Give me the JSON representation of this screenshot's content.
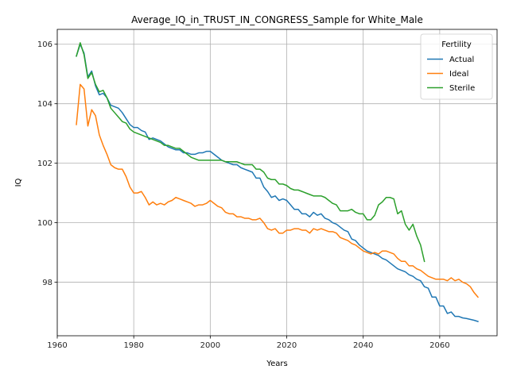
{
  "chart_data": {
    "type": "line",
    "title": "Average_IQ_in_TRUST_IN_CONGRESS_Sample for White_Male",
    "xlabel": "Years",
    "ylabel": "IQ",
    "xlim": [
      1960,
      2075
    ],
    "ylim": [
      96.2,
      106.5
    ],
    "x_ticks": [
      1960,
      1980,
      2000,
      2020,
      2040,
      2060
    ],
    "y_ticks": [
      98,
      100,
      102,
      104,
      106
    ],
    "grid": true,
    "legend": {
      "title": "Fertility",
      "location": "top-right"
    },
    "series": [
      {
        "name": "Actual",
        "color": "#1f77b4",
        "points": [
          [
            1965,
            105.6
          ],
          [
            1966,
            106.0
          ],
          [
            1967,
            105.7
          ],
          [
            1968,
            104.9
          ],
          [
            1969,
            105.1
          ],
          [
            1970,
            104.6
          ],
          [
            1971,
            104.3
          ],
          [
            1972,
            104.35
          ],
          [
            1973,
            104.2
          ],
          [
            1974,
            103.95
          ],
          [
            1975,
            103.9
          ],
          [
            1976,
            103.85
          ],
          [
            1977,
            103.7
          ],
          [
            1978,
            103.5
          ],
          [
            1979,
            103.3
          ],
          [
            1980,
            103.2
          ],
          [
            1981,
            103.2
          ],
          [
            1982,
            103.1
          ],
          [
            1983,
            103.05
          ],
          [
            1984,
            102.8
          ],
          [
            1985,
            102.85
          ],
          [
            1986,
            102.8
          ],
          [
            1987,
            102.75
          ],
          [
            1988,
            102.65
          ],
          [
            1989,
            102.55
          ],
          [
            1990,
            102.5
          ],
          [
            1991,
            102.45
          ],
          [
            1992,
            102.45
          ],
          [
            1993,
            102.35
          ],
          [
            1994,
            102.35
          ],
          [
            1995,
            102.3
          ],
          [
            1996,
            102.3
          ],
          [
            1997,
            102.35
          ],
          [
            1998,
            102.35
          ],
          [
            1999,
            102.4
          ],
          [
            2000,
            102.4
          ],
          [
            2001,
            102.3
          ],
          [
            2002,
            102.2
          ],
          [
            2003,
            102.1
          ],
          [
            2004,
            102.05
          ],
          [
            2005,
            102.0
          ],
          [
            2006,
            101.95
          ],
          [
            2007,
            101.95
          ],
          [
            2008,
            101.85
          ],
          [
            2009,
            101.8
          ],
          [
            2010,
            101.75
          ],
          [
            2011,
            101.7
          ],
          [
            2012,
            101.5
          ],
          [
            2013,
            101.5
          ],
          [
            2014,
            101.2
          ],
          [
            2015,
            101.05
          ],
          [
            2016,
            100.85
          ],
          [
            2017,
            100.9
          ],
          [
            2018,
            100.75
          ],
          [
            2019,
            100.8
          ],
          [
            2020,
            100.75
          ],
          [
            2021,
            100.6
          ],
          [
            2022,
            100.45
          ],
          [
            2023,
            100.45
          ],
          [
            2024,
            100.3
          ],
          [
            2025,
            100.3
          ],
          [
            2026,
            100.2
          ],
          [
            2027,
            100.35
          ],
          [
            2028,
            100.25
          ],
          [
            2029,
            100.3
          ],
          [
            2030,
            100.15
          ],
          [
            2031,
            100.1
          ],
          [
            2032,
            100.0
          ],
          [
            2033,
            99.95
          ],
          [
            2034,
            99.85
          ],
          [
            2035,
            99.75
          ],
          [
            2036,
            99.7
          ],
          [
            2037,
            99.45
          ],
          [
            2038,
            99.4
          ],
          [
            2039,
            99.25
          ],
          [
            2040,
            99.15
          ],
          [
            2041,
            99.05
          ],
          [
            2042,
            99.0
          ],
          [
            2043,
            98.95
          ],
          [
            2044,
            98.9
          ],
          [
            2045,
            98.8
          ],
          [
            2046,
            98.75
          ],
          [
            2047,
            98.65
          ],
          [
            2048,
            98.55
          ],
          [
            2049,
            98.45
          ],
          [
            2050,
            98.4
          ],
          [
            2051,
            98.35
          ],
          [
            2052,
            98.25
          ],
          [
            2053,
            98.2
          ],
          [
            2054,
            98.1
          ],
          [
            2055,
            98.05
          ],
          [
            2056,
            97.85
          ],
          [
            2057,
            97.8
          ],
          [
            2058,
            97.5
          ],
          [
            2059,
            97.5
          ],
          [
            2060,
            97.2
          ],
          [
            2061,
            97.2
          ],
          [
            2062,
            96.95
          ],
          [
            2063,
            97.0
          ],
          [
            2064,
            96.85
          ],
          [
            2065,
            96.85
          ],
          [
            2066,
            96.8
          ],
          [
            2067,
            96.78
          ],
          [
            2068,
            96.75
          ],
          [
            2069,
            96.72
          ],
          [
            2070,
            96.68
          ]
        ]
      },
      {
        "name": "Ideal",
        "color": "#ff7f0e",
        "points": [
          [
            1965,
            103.3
          ],
          [
            1966,
            104.65
          ],
          [
            1967,
            104.5
          ],
          [
            1968,
            103.25
          ],
          [
            1969,
            103.8
          ],
          [
            1970,
            103.6
          ],
          [
            1971,
            102.95
          ],
          [
            1972,
            102.6
          ],
          [
            1973,
            102.3
          ],
          [
            1974,
            101.95
          ],
          [
            1975,
            101.85
          ],
          [
            1976,
            101.8
          ],
          [
            1977,
            101.8
          ],
          [
            1978,
            101.55
          ],
          [
            1979,
            101.2
          ],
          [
            1980,
            101.0
          ],
          [
            1981,
            101.0
          ],
          [
            1982,
            101.05
          ],
          [
            1983,
            100.85
          ],
          [
            1984,
            100.6
          ],
          [
            1985,
            100.7
          ],
          [
            1986,
            100.6
          ],
          [
            1987,
            100.65
          ],
          [
            1988,
            100.6
          ],
          [
            1989,
            100.7
          ],
          [
            1990,
            100.75
          ],
          [
            1991,
            100.85
          ],
          [
            1992,
            100.8
          ],
          [
            1993,
            100.75
          ],
          [
            1994,
            100.7
          ],
          [
            1995,
            100.65
          ],
          [
            1996,
            100.55
          ],
          [
            1997,
            100.6
          ],
          [
            1998,
            100.6
          ],
          [
            1999,
            100.65
          ],
          [
            2000,
            100.75
          ],
          [
            2001,
            100.65
          ],
          [
            2002,
            100.55
          ],
          [
            2003,
            100.5
          ],
          [
            2004,
            100.35
          ],
          [
            2005,
            100.3
          ],
          [
            2006,
            100.3
          ],
          [
            2007,
            100.2
          ],
          [
            2008,
            100.2
          ],
          [
            2009,
            100.15
          ],
          [
            2010,
            100.15
          ],
          [
            2011,
            100.1
          ],
          [
            2012,
            100.1
          ],
          [
            2013,
            100.15
          ],
          [
            2014,
            100.0
          ],
          [
            2015,
            99.8
          ],
          [
            2016,
            99.75
          ],
          [
            2017,
            99.8
          ],
          [
            2018,
            99.65
          ],
          [
            2019,
            99.65
          ],
          [
            2020,
            99.75
          ],
          [
            2021,
            99.75
          ],
          [
            2022,
            99.8
          ],
          [
            2023,
            99.8
          ],
          [
            2024,
            99.75
          ],
          [
            2025,
            99.75
          ],
          [
            2026,
            99.65
          ],
          [
            2027,
            99.8
          ],
          [
            2028,
            99.75
          ],
          [
            2029,
            99.8
          ],
          [
            2030,
            99.75
          ],
          [
            2031,
            99.7
          ],
          [
            2032,
            99.7
          ],
          [
            2033,
            99.65
          ],
          [
            2034,
            99.5
          ],
          [
            2035,
            99.45
          ],
          [
            2036,
            99.4
          ],
          [
            2037,
            99.3
          ],
          [
            2038,
            99.25
          ],
          [
            2039,
            99.15
          ],
          [
            2040,
            99.05
          ],
          [
            2041,
            99.0
          ],
          [
            2042,
            98.95
          ],
          [
            2043,
            99.0
          ],
          [
            2044,
            98.95
          ],
          [
            2045,
            99.05
          ],
          [
            2046,
            99.05
          ],
          [
            2047,
            99.0
          ],
          [
            2048,
            98.95
          ],
          [
            2049,
            98.8
          ],
          [
            2050,
            98.7
          ],
          [
            2051,
            98.7
          ],
          [
            2052,
            98.55
          ],
          [
            2053,
            98.55
          ],
          [
            2054,
            98.45
          ],
          [
            2055,
            98.4
          ],
          [
            2056,
            98.3
          ],
          [
            2057,
            98.2
          ],
          [
            2058,
            98.15
          ],
          [
            2059,
            98.1
          ],
          [
            2060,
            98.1
          ],
          [
            2061,
            98.1
          ],
          [
            2062,
            98.05
          ],
          [
            2063,
            98.15
          ],
          [
            2064,
            98.05
          ],
          [
            2065,
            98.1
          ],
          [
            2066,
            98.0
          ],
          [
            2067,
            97.95
          ],
          [
            2068,
            97.85
          ],
          [
            2069,
            97.65
          ],
          [
            2070,
            97.5
          ]
        ]
      },
      {
        "name": "Sterile",
        "color": "#2ca02c",
        "points": [
          [
            1965,
            105.6
          ],
          [
            1966,
            106.05
          ],
          [
            1967,
            105.65
          ],
          [
            1968,
            104.85
          ],
          [
            1969,
            105.05
          ],
          [
            1970,
            104.65
          ],
          [
            1971,
            104.4
          ],
          [
            1972,
            104.45
          ],
          [
            1973,
            104.2
          ],
          [
            1974,
            103.85
          ],
          [
            1975,
            103.7
          ],
          [
            1976,
            103.55
          ],
          [
            1977,
            103.4
          ],
          [
            1978,
            103.35
          ],
          [
            1979,
            103.15
          ],
          [
            1980,
            103.05
          ],
          [
            1981,
            103.0
          ],
          [
            1982,
            102.95
          ],
          [
            1983,
            102.9
          ],
          [
            1984,
            102.85
          ],
          [
            1985,
            102.8
          ],
          [
            1986,
            102.75
          ],
          [
            1987,
            102.7
          ],
          [
            1988,
            102.6
          ],
          [
            1989,
            102.6
          ],
          [
            1990,
            102.55
          ],
          [
            1991,
            102.5
          ],
          [
            1992,
            102.5
          ],
          [
            1993,
            102.4
          ],
          [
            1994,
            102.3
          ],
          [
            1995,
            102.2
          ],
          [
            1996,
            102.15
          ],
          [
            1997,
            102.1
          ],
          [
            1998,
            102.1
          ],
          [
            1999,
            102.1
          ],
          [
            2000,
            102.1
          ],
          [
            2001,
            102.1
          ],
          [
            2002,
            102.1
          ],
          [
            2003,
            102.1
          ],
          [
            2004,
            102.05
          ],
          [
            2005,
            102.05
          ],
          [
            2006,
            102.05
          ],
          [
            2007,
            102.05
          ],
          [
            2008,
            102.0
          ],
          [
            2009,
            101.95
          ],
          [
            2010,
            101.95
          ],
          [
            2011,
            101.95
          ],
          [
            2012,
            101.8
          ],
          [
            2013,
            101.8
          ],
          [
            2014,
            101.7
          ],
          [
            2015,
            101.5
          ],
          [
            2016,
            101.45
          ],
          [
            2017,
            101.45
          ],
          [
            2018,
            101.3
          ],
          [
            2019,
            101.3
          ],
          [
            2020,
            101.25
          ],
          [
            2021,
            101.15
          ],
          [
            2022,
            101.1
          ],
          [
            2023,
            101.1
          ],
          [
            2024,
            101.05
          ],
          [
            2025,
            101.0
          ],
          [
            2026,
            100.95
          ],
          [
            2027,
            100.9
          ],
          [
            2028,
            100.9
          ],
          [
            2029,
            100.9
          ],
          [
            2030,
            100.85
          ],
          [
            2031,
            100.75
          ],
          [
            2032,
            100.65
          ],
          [
            2033,
            100.6
          ],
          [
            2034,
            100.4
          ],
          [
            2035,
            100.4
          ],
          [
            2036,
            100.4
          ],
          [
            2037,
            100.45
          ],
          [
            2038,
            100.35
          ],
          [
            2039,
            100.3
          ],
          [
            2040,
            100.3
          ],
          [
            2041,
            100.1
          ],
          [
            2042,
            100.1
          ],
          [
            2043,
            100.25
          ],
          [
            2044,
            100.6
          ],
          [
            2045,
            100.7
          ],
          [
            2046,
            100.85
          ],
          [
            2047,
            100.85
          ],
          [
            2048,
            100.8
          ],
          [
            2049,
            100.3
          ],
          [
            2050,
            100.4
          ],
          [
            2051,
            99.95
          ],
          [
            2052,
            99.75
          ],
          [
            2053,
            99.95
          ],
          [
            2054,
            99.55
          ],
          [
            2055,
            99.25
          ],
          [
            2056,
            98.7
          ]
        ]
      }
    ]
  }
}
